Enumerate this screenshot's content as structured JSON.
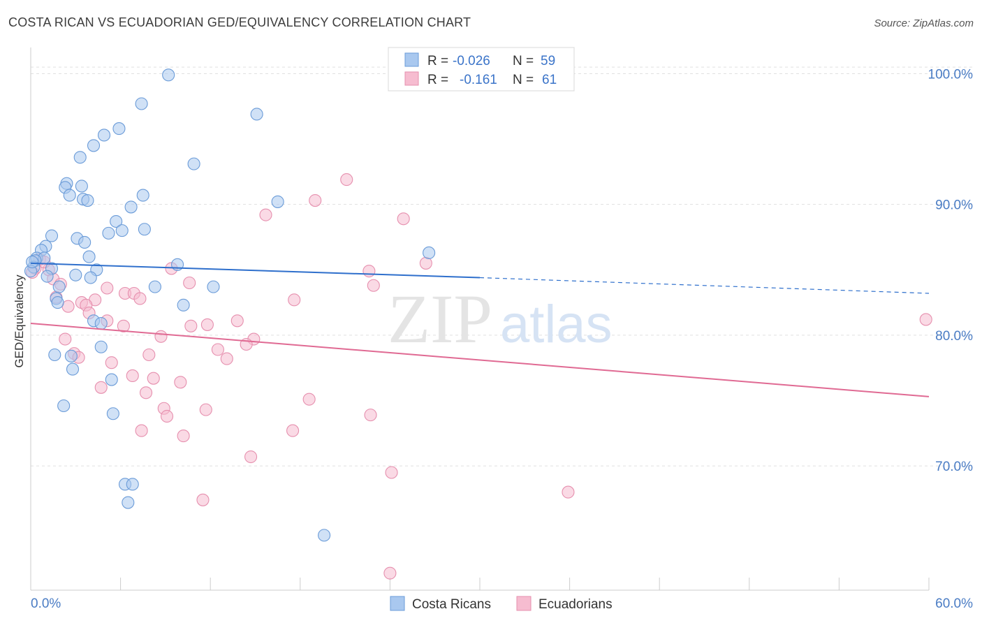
{
  "title": "COSTA RICAN VS ECUADORIAN GED/EQUIVALENCY CORRELATION CHART",
  "source": "Source: ZipAtlas.com",
  "watermark": {
    "zip": "ZIP",
    "atlas": "atlas"
  },
  "colors": {
    "blue_fill": "#a9c8ef",
    "blue_stroke": "#6a9bd8",
    "blue_line": "#2e6fcc",
    "pink_fill": "#f6bcd0",
    "pink_stroke": "#e68fae",
    "pink_line": "#e06a93",
    "tick_label": "#4a7cc4",
    "grid": "#e0e0e0"
  },
  "legend": {
    "rows": [
      {
        "r_label": "R = ",
        "r_value": "-0.026",
        "n_label": "N = ",
        "n_value": "59",
        "series": "blue"
      },
      {
        "r_label": "R = ",
        "r_value": "-0.161",
        "n_label": "N = ",
        "n_value": "61",
        "series": "pink"
      }
    ]
  },
  "bottom_legend": [
    {
      "label": "Costa Ricans",
      "series": "blue"
    },
    {
      "label": "Ecuadorians",
      "series": "pink"
    }
  ],
  "chart_data": {
    "type": "scatter",
    "title": "COSTA RICAN VS ECUADORIAN GED/EQUIVALENCY CORRELATION CHART",
    "xlabel": "",
    "ylabel": "GED/Equivalency",
    "xlim": [
      0,
      60
    ],
    "ylim": [
      60.5,
      102
    ],
    "x_tick_labels": [
      "0.0%",
      "60.0%"
    ],
    "y_ticks": [
      70,
      80,
      90,
      100
    ],
    "y_tick_labels": [
      "70.0%",
      "80.0%",
      "90.0%",
      "100.0%"
    ],
    "grid": true,
    "legend_position": "top-center",
    "series": [
      {
        "name": "Costa Ricans",
        "color": "blue",
        "r": -0.026,
        "n": 59,
        "trend": {
          "x": [
            0,
            30
          ],
          "y": [
            85.5,
            84.4
          ],
          "dashed_to": [
            60,
            83.2
          ]
        },
        "points": [
          [
            9.2,
            99.9
          ],
          [
            7.4,
            97.7
          ],
          [
            15.1,
            96.9
          ],
          [
            5.9,
            95.8
          ],
          [
            4.9,
            95.3
          ],
          [
            4.2,
            94.5
          ],
          [
            3.3,
            93.6
          ],
          [
            10.9,
            93.1
          ],
          [
            2.4,
            91.6
          ],
          [
            3.4,
            91.4
          ],
          [
            2.3,
            91.3
          ],
          [
            2.6,
            90.7
          ],
          [
            3.5,
            90.4
          ],
          [
            3.8,
            90.3
          ],
          [
            16.5,
            90.2
          ],
          [
            7.5,
            90.7
          ],
          [
            6.7,
            89.8
          ],
          [
            5.7,
            88.7
          ],
          [
            6.1,
            88.0
          ],
          [
            7.6,
            88.1
          ],
          [
            5.2,
            87.8
          ],
          [
            1.4,
            87.6
          ],
          [
            3.1,
            87.4
          ],
          [
            3.6,
            87.1
          ],
          [
            1.0,
            86.8
          ],
          [
            0.7,
            86.5
          ],
          [
            26.6,
            86.3
          ],
          [
            3.9,
            86.0
          ],
          [
            0.4,
            85.9
          ],
          [
            0.9,
            85.9
          ],
          [
            0.3,
            85.7
          ],
          [
            9.8,
            85.4
          ],
          [
            0.2,
            85.2
          ],
          [
            1.4,
            85.1
          ],
          [
            4.4,
            85.0
          ],
          [
            3.0,
            84.6
          ],
          [
            1.1,
            84.5
          ],
          [
            4.0,
            84.4
          ],
          [
            8.3,
            83.7
          ],
          [
            12.2,
            83.7
          ],
          [
            1.9,
            83.7
          ],
          [
            1.7,
            82.8
          ],
          [
            1.8,
            82.5
          ],
          [
            10.2,
            82.3
          ],
          [
            4.2,
            81.1
          ],
          [
            4.7,
            80.9
          ],
          [
            4.7,
            79.1
          ],
          [
            1.6,
            78.5
          ],
          [
            2.7,
            78.4
          ],
          [
            2.8,
            77.4
          ],
          [
            5.4,
            76.6
          ],
          [
            2.2,
            74.6
          ],
          [
            5.5,
            74.0
          ],
          [
            6.3,
            68.6
          ],
          [
            6.8,
            68.6
          ],
          [
            6.5,
            67.2
          ],
          [
            19.6,
            64.7
          ],
          [
            0.0,
            84.9
          ],
          [
            0.1,
            85.6
          ]
        ]
      },
      {
        "name": "Ecuadorians",
        "color": "pink",
        "r": -0.161,
        "n": 61,
        "trend": {
          "x": [
            0,
            60
          ],
          "y": [
            80.9,
            75.3
          ]
        },
        "points": [
          [
            21.1,
            91.9
          ],
          [
            19.0,
            90.3
          ],
          [
            15.7,
            89.2
          ],
          [
            24.9,
            88.9
          ],
          [
            26.4,
            85.5
          ],
          [
            9.4,
            85.1
          ],
          [
            22.6,
            84.9
          ],
          [
            1.2,
            85.0
          ],
          [
            0.6,
            85.8
          ],
          [
            0.9,
            85.6
          ],
          [
            10.6,
            84.0
          ],
          [
            1.5,
            84.3
          ],
          [
            2.0,
            83.9
          ],
          [
            22.9,
            83.8
          ],
          [
            5.1,
            83.6
          ],
          [
            6.3,
            83.2
          ],
          [
            6.9,
            83.2
          ],
          [
            1.7,
            82.9
          ],
          [
            7.3,
            82.8
          ],
          [
            4.3,
            82.7
          ],
          [
            17.6,
            82.7
          ],
          [
            3.4,
            82.5
          ],
          [
            2.5,
            82.2
          ],
          [
            3.7,
            82.3
          ],
          [
            3.9,
            81.7
          ],
          [
            5.1,
            81.1
          ],
          [
            13.8,
            81.1
          ],
          [
            6.2,
            80.7
          ],
          [
            10.7,
            80.7
          ],
          [
            11.8,
            80.8
          ],
          [
            2.3,
            79.7
          ],
          [
            8.7,
            79.9
          ],
          [
            14.9,
            79.7
          ],
          [
            14.4,
            79.3
          ],
          [
            12.5,
            78.9
          ],
          [
            7.9,
            78.5
          ],
          [
            2.9,
            78.6
          ],
          [
            3.2,
            78.3
          ],
          [
            5.4,
            77.9
          ],
          [
            13.1,
            78.2
          ],
          [
            6.8,
            76.9
          ],
          [
            8.2,
            76.7
          ],
          [
            10.0,
            76.4
          ],
          [
            4.7,
            76.0
          ],
          [
            7.7,
            75.6
          ],
          [
            18.6,
            75.1
          ],
          [
            8.9,
            74.4
          ],
          [
            11.7,
            74.3
          ],
          [
            9.1,
            73.8
          ],
          [
            22.7,
            73.9
          ],
          [
            7.4,
            72.7
          ],
          [
            17.5,
            72.7
          ],
          [
            10.2,
            72.3
          ],
          [
            14.7,
            70.7
          ],
          [
            24.1,
            69.5
          ],
          [
            35.9,
            68.0
          ],
          [
            11.5,
            67.4
          ],
          [
            24.0,
            61.8
          ],
          [
            59.8,
            81.2
          ],
          [
            0.3,
            85.1
          ],
          [
            0.1,
            84.8
          ]
        ]
      }
    ]
  }
}
